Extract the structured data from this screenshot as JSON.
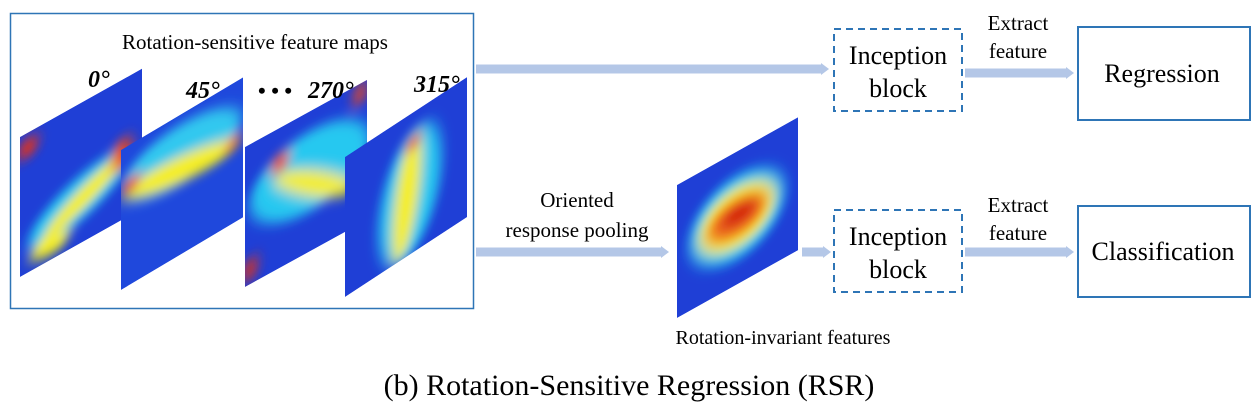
{
  "group": {
    "title": "Rotation-sensitive feature maps",
    "angles": [
      "0°",
      "45°",
      "270°",
      "315°"
    ],
    "ellipsis": "• • •"
  },
  "pooling": {
    "line1": "Oriented",
    "line2": "response pooling"
  },
  "invariant_label": "Rotation-invariant features",
  "top_branch": {
    "block_line1": "Inception",
    "block_line2": "block",
    "extract_line1": "Extract",
    "extract_line2": "feature",
    "output": "Regression"
  },
  "bottom_branch": {
    "block_line1": "Inception",
    "block_line2": "block",
    "extract_line1": "Extract",
    "extract_line2": "feature",
    "output": "Classification"
  },
  "caption": "(b) Rotation-Sensitive Regression (RSR)",
  "colors": {
    "box_border": "#2e75b6",
    "arrow": "#b4c7e7",
    "heat_base": "#1f3fd6"
  }
}
